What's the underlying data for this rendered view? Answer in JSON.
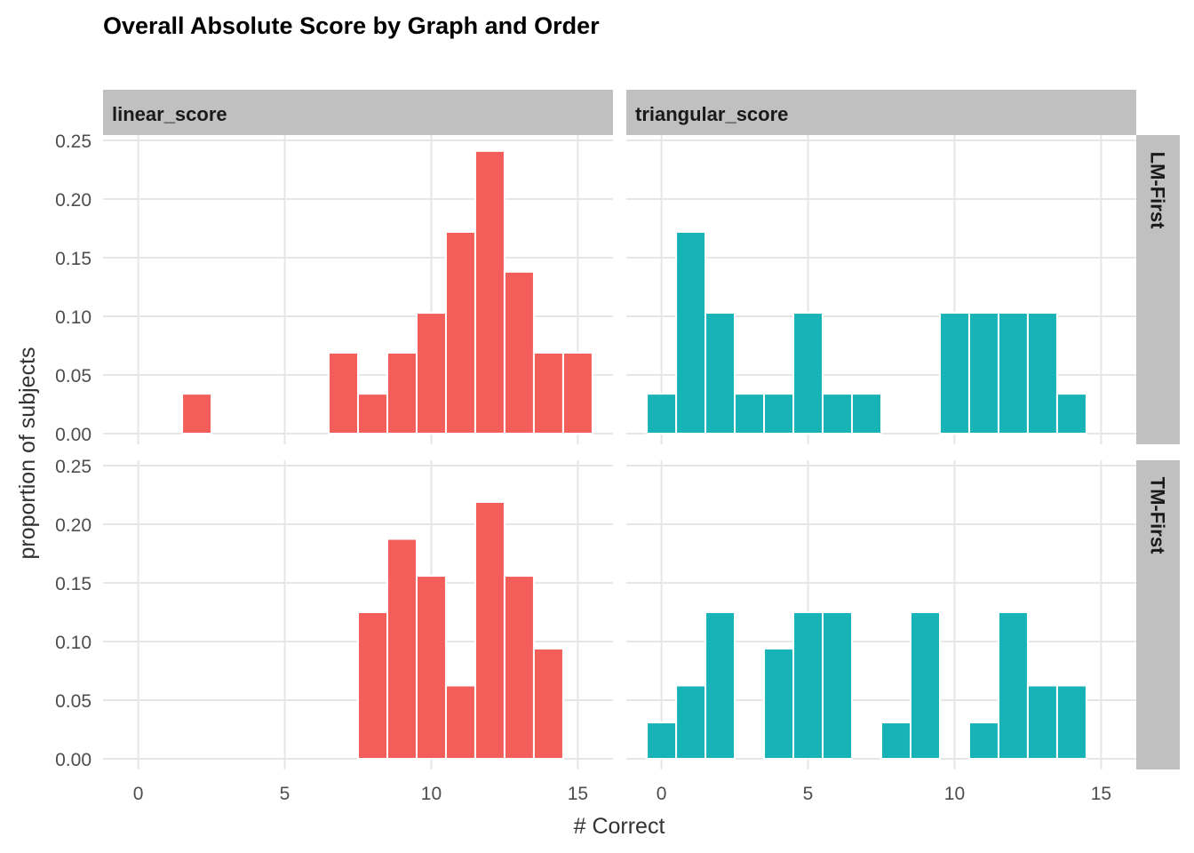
{
  "chart_data": {
    "type": "bar",
    "title": "Overall Absolute Score by Graph and Order",
    "xlabel": "# Correct",
    "ylabel": "proportion of subjects",
    "xlim": [
      -1.2,
      16.2
    ],
    "ylim": [
      0,
      0.25
    ],
    "x_ticks": [
      0,
      5,
      10,
      15
    ],
    "y_ticks": [
      "0.00",
      "0.05",
      "0.10",
      "0.15",
      "0.20",
      "0.25"
    ],
    "grid": true,
    "columns": [
      "linear_score",
      "triangular_score"
    ],
    "rows": [
      "LM-First",
      "TM-First"
    ],
    "colors": {
      "linear_score": "#F35E5A",
      "triangular_score": "#17B3B7"
    },
    "panels": [
      {
        "column": "linear_score",
        "row": "LM-First",
        "bars": [
          {
            "x": 2,
            "value": 0.034
          },
          {
            "x": 7,
            "value": 0.069
          },
          {
            "x": 8,
            "value": 0.034
          },
          {
            "x": 9,
            "value": 0.069
          },
          {
            "x": 10,
            "value": 0.103
          },
          {
            "x": 11,
            "value": 0.172
          },
          {
            "x": 12,
            "value": 0.241
          },
          {
            "x": 13,
            "value": 0.138
          },
          {
            "x": 14,
            "value": 0.069
          },
          {
            "x": 15,
            "value": 0.069
          }
        ]
      },
      {
        "column": "triangular_score",
        "row": "LM-First",
        "bars": [
          {
            "x": 0,
            "value": 0.034
          },
          {
            "x": 1,
            "value": 0.172
          },
          {
            "x": 2,
            "value": 0.103
          },
          {
            "x": 3,
            "value": 0.034
          },
          {
            "x": 4,
            "value": 0.034
          },
          {
            "x": 5,
            "value": 0.103
          },
          {
            "x": 6,
            "value": 0.034
          },
          {
            "x": 7,
            "value": 0.034
          },
          {
            "x": 10,
            "value": 0.103
          },
          {
            "x": 11,
            "value": 0.103
          },
          {
            "x": 12,
            "value": 0.103
          },
          {
            "x": 13,
            "value": 0.103
          },
          {
            "x": 14,
            "value": 0.034
          }
        ]
      },
      {
        "column": "linear_score",
        "row": "TM-First",
        "bars": [
          {
            "x": 8,
            "value": 0.125
          },
          {
            "x": 9,
            "value": 0.1875
          },
          {
            "x": 10,
            "value": 0.156
          },
          {
            "x": 11,
            "value": 0.0625
          },
          {
            "x": 12,
            "value": 0.219
          },
          {
            "x": 13,
            "value": 0.156
          },
          {
            "x": 14,
            "value": 0.094
          }
        ]
      },
      {
        "column": "triangular_score",
        "row": "TM-First",
        "bars": [
          {
            "x": 0,
            "value": 0.031
          },
          {
            "x": 1,
            "value": 0.0625
          },
          {
            "x": 2,
            "value": 0.125
          },
          {
            "x": 4,
            "value": 0.094
          },
          {
            "x": 5,
            "value": 0.125
          },
          {
            "x": 6,
            "value": 0.125
          },
          {
            "x": 8,
            "value": 0.031
          },
          {
            "x": 9,
            "value": 0.125
          },
          {
            "x": 11,
            "value": 0.031
          },
          {
            "x": 12,
            "value": 0.125
          },
          {
            "x": 13,
            "value": 0.0625
          },
          {
            "x": 14,
            "value": 0.0625
          }
        ]
      }
    ]
  }
}
